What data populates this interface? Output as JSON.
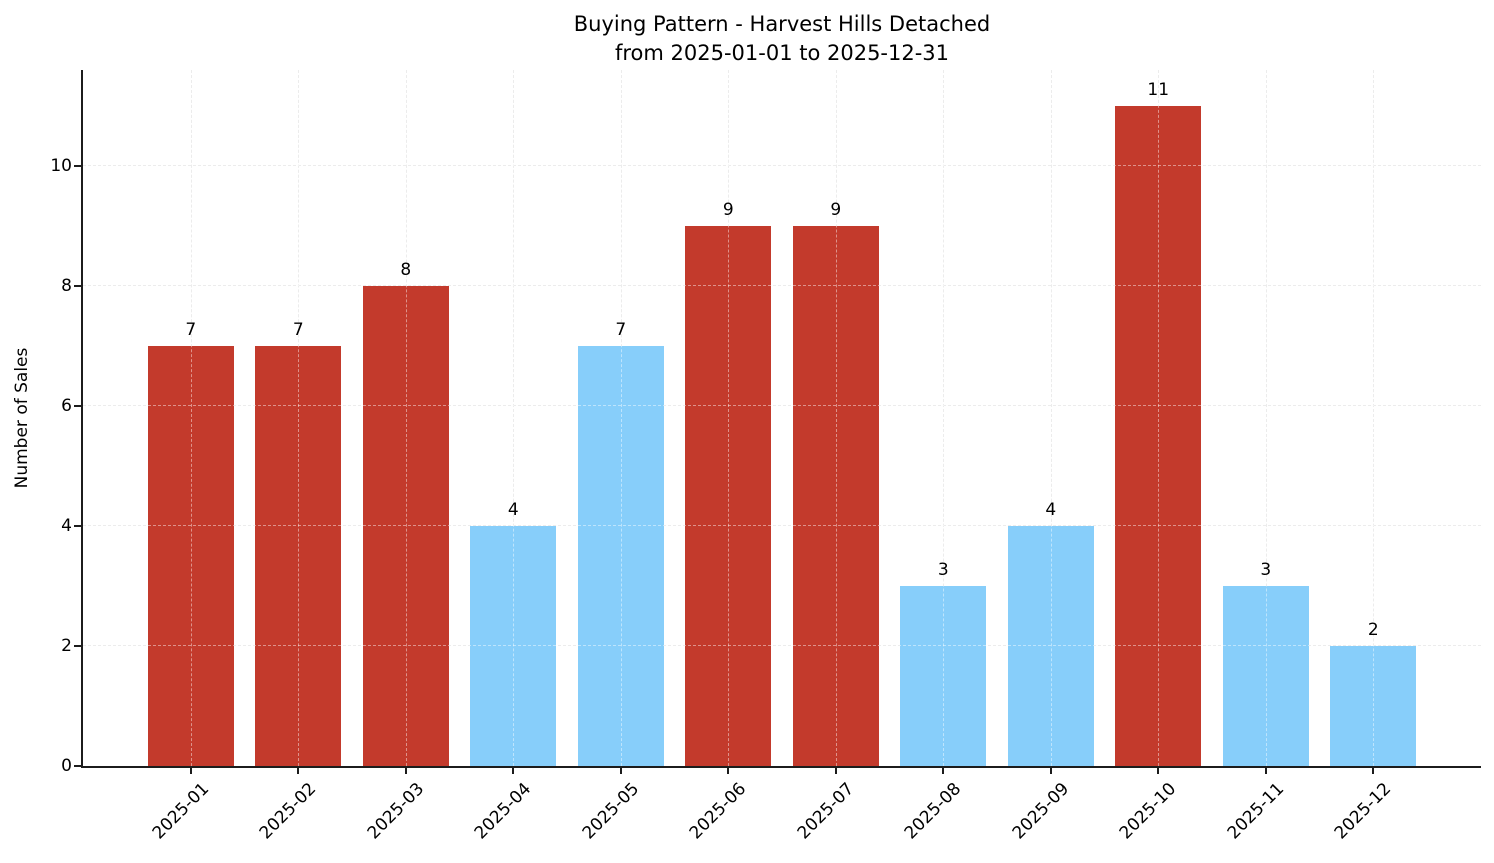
{
  "chart_data": {
    "type": "bar",
    "title_lines": [
      "Buying Pattern - Harvest Hills Detached",
      "from 2025-01-01 to 2025-12-31"
    ],
    "title": "Buying Pattern - Harvest Hills Detached\nfrom 2025-01-01 to 2025-12-31",
    "xlabel": "",
    "ylabel": "Number of Sales",
    "categories": [
      "2025-01",
      "2025-02",
      "2025-03",
      "2025-04",
      "2025-05",
      "2025-06",
      "2025-07",
      "2025-08",
      "2025-09",
      "2025-10",
      "2025-11",
      "2025-12"
    ],
    "values": [
      7,
      7,
      8,
      4,
      7,
      9,
      9,
      3,
      4,
      11,
      3,
      2
    ],
    "bar_colors": [
      "#c33a2c",
      "#c33a2c",
      "#c33a2c",
      "#87cefa",
      "#87cefa",
      "#c33a2c",
      "#c33a2c",
      "#87cefa",
      "#87cefa",
      "#c33a2c",
      "#87cefa",
      "#87cefa"
    ],
    "palette": {
      "high_red": "#c33a2c",
      "low_blue": "#87cefa"
    },
    "value_labels": [
      7,
      7,
      8,
      4,
      7,
      9,
      9,
      3,
      4,
      11,
      3,
      2
    ],
    "yticks": [
      0,
      2,
      4,
      6,
      8,
      10
    ],
    "ylim": [
      0,
      11.6
    ],
    "grid": true,
    "grid_style": "dashed",
    "legend": "none",
    "x_tick_rotation_deg": 45
  }
}
